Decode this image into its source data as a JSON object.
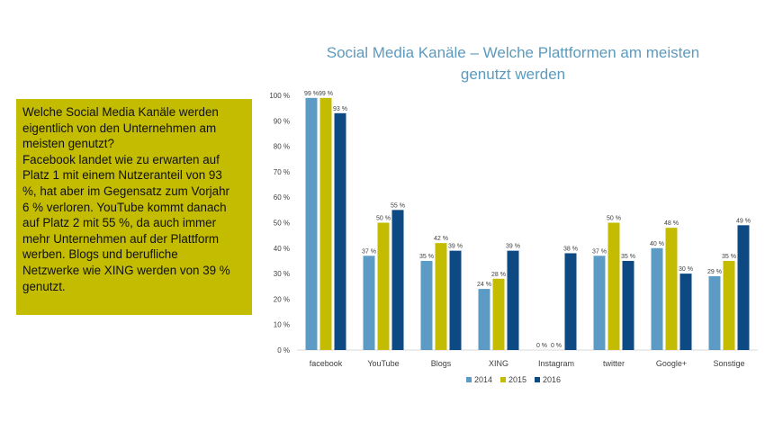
{
  "textbox": {
    "lines": [
      "Welche Social Media Kanäle werden",
      "eigentlich von den Unternehmen am",
      "meisten genutzt?",
      "Facebook landet wie zu erwarten auf",
      "Platz 1 mit einem Nutzeranteil von 93",
      "%, hat aber im Gegensatz zum Vorjahr",
      "6 % verloren. YouTube kommt danach",
      "auf Platz 2 mit 55 %, da auch immer",
      "mehr Unternehmen auf der Plattform",
      "werben. Blogs und berufliche",
      "Netzwerke wie XING werden von 39 %",
      "genutzt."
    ]
  },
  "chart_data": {
    "type": "bar",
    "title_line1": "Social Media Kanäle – Welche Plattformen am meisten",
    "title_line2": "genutzt werden",
    "categories": [
      "facebook",
      "YouTube",
      "Blogs",
      "XING",
      "Instagram",
      "twitter",
      "Google+",
      "Sonstige"
    ],
    "series": [
      {
        "name": "2014",
        "color": "#5b9bc5",
        "values": [
          99,
          37,
          35,
          24,
          0,
          37,
          40,
          29
        ]
      },
      {
        "name": "2015",
        "color": "#c3bc00",
        "values": [
          99,
          50,
          42,
          28,
          0,
          50,
          48,
          35
        ]
      },
      {
        "name": "2016",
        "color": "#0d4a83",
        "values": [
          93,
          55,
          39,
          39,
          38,
          35,
          30,
          49
        ]
      }
    ],
    "ylim": [
      0,
      100
    ],
    "yticks": [
      0,
      10,
      20,
      30,
      40,
      50,
      60,
      70,
      80,
      90,
      100
    ],
    "ytick_suffix": " %",
    "value_suffix": " %",
    "grid": false,
    "legend": "bottom"
  }
}
